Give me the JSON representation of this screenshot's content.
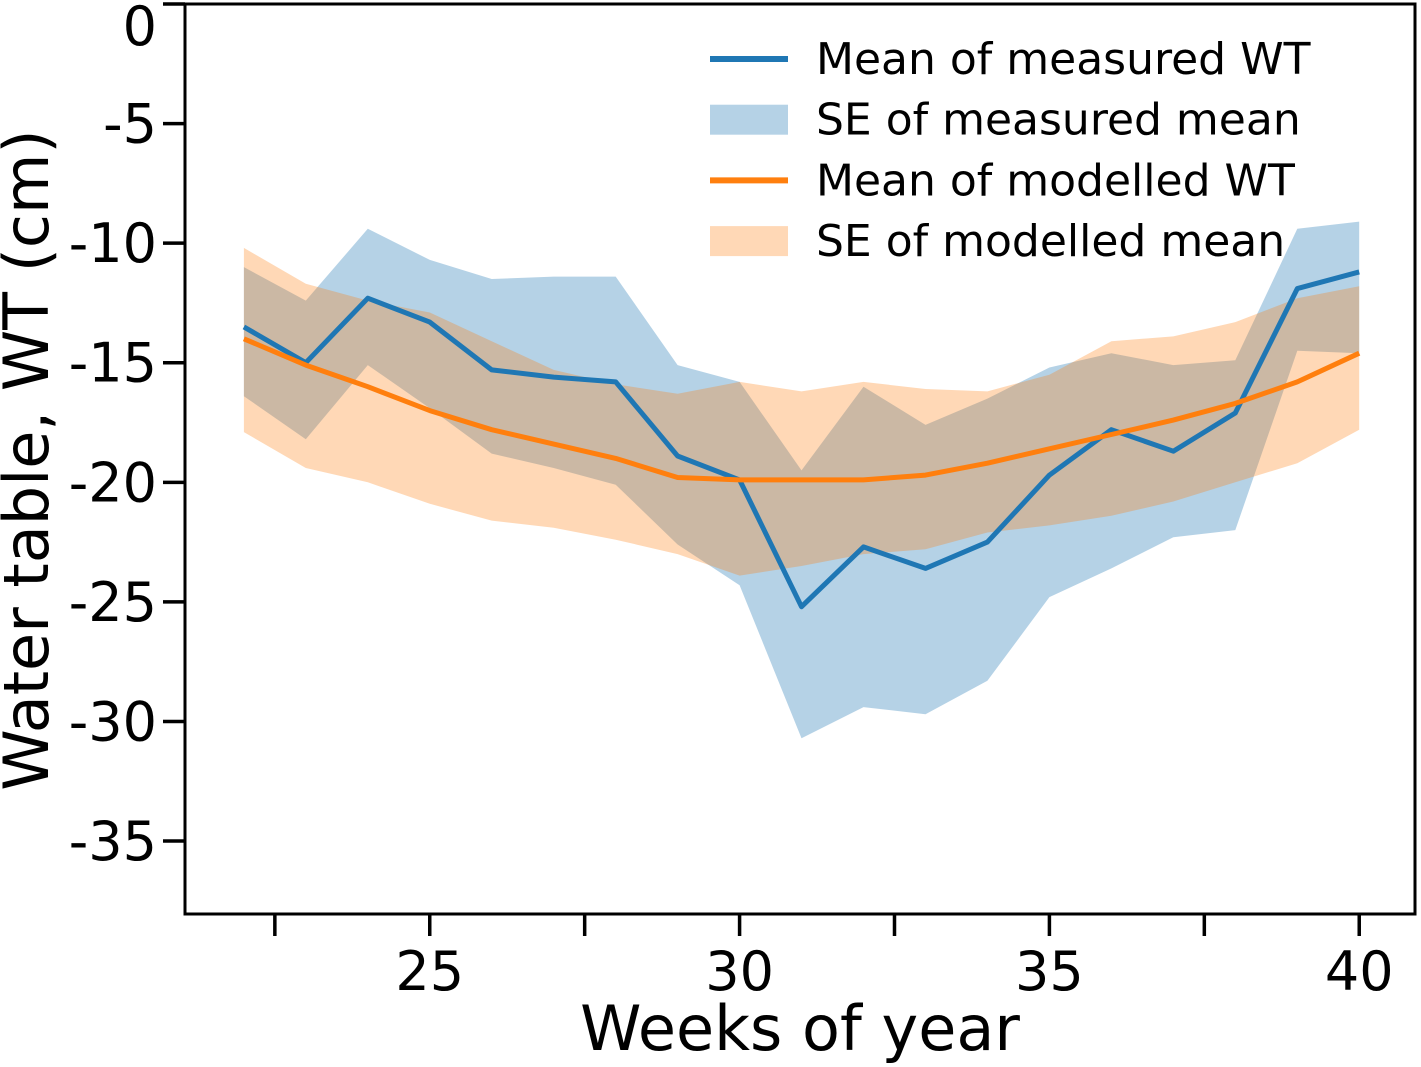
{
  "chart_data": {
    "type": "line",
    "title": "",
    "xlabel": "Weeks of year",
    "ylabel": "Water table, WT (cm)",
    "grid": false,
    "legend_position": "upper right",
    "xlim": [
      21.05,
      40.9
    ],
    "ylim": [
      0,
      -38.05
    ],
    "x": [
      22,
      23,
      24,
      25,
      26,
      27,
      28,
      29,
      30,
      31,
      32,
      33,
      34,
      35,
      36,
      37,
      38,
      39,
      40
    ],
    "series": [
      {
        "name": "Mean of measured WT",
        "kind": "line",
        "color": "#1f77b4",
        "values": [
          -13.5,
          -15.0,
          -12.3,
          -13.3,
          -15.3,
          -15.6,
          -15.8,
          -18.9,
          -19.9,
          -25.2,
          -22.7,
          -23.6,
          -22.5,
          -19.7,
          -17.8,
          -18.7,
          -17.1,
          -11.9,
          -11.2
        ]
      },
      {
        "name": "SE of measured mean",
        "kind": "band",
        "color": "rgba(31,119,180,0.33)",
        "upper": [
          -11.0,
          -12.4,
          -9.4,
          -10.7,
          -11.5,
          -11.4,
          -11.4,
          -15.1,
          -15.8,
          -19.5,
          -16.0,
          -17.6,
          -16.5,
          -15.2,
          -14.6,
          -15.1,
          -14.9,
          -9.4,
          -9.1
        ],
        "lower": [
          -16.4,
          -18.2,
          -15.1,
          -16.9,
          -18.8,
          -19.4,
          -20.1,
          -22.6,
          -24.3,
          -30.7,
          -29.4,
          -29.7,
          -28.3,
          -24.8,
          -23.6,
          -22.3,
          -22.0,
          -14.5,
          -14.6
        ]
      },
      {
        "name": "Mean of modelled WT",
        "kind": "line",
        "color": "#ff7f0e",
        "values": [
          -14.0,
          -15.1,
          -16.0,
          -17.0,
          -17.8,
          -18.4,
          -19.0,
          -19.8,
          -19.9,
          -19.9,
          -19.9,
          -19.7,
          -19.2,
          -18.6,
          -18.0,
          -17.4,
          -16.7,
          -15.8,
          -14.6
        ]
      },
      {
        "name": "SE of modelled mean",
        "kind": "band",
        "color": "rgba(255,127,14,0.30)",
        "upper": [
          -10.2,
          -11.7,
          -12.4,
          -12.9,
          -14.1,
          -15.3,
          -15.9,
          -16.3,
          -15.8,
          -16.2,
          -15.8,
          -16.1,
          -16.2,
          -15.5,
          -14.1,
          -13.9,
          -13.3,
          -12.3,
          -11.8
        ],
        "lower": [
          -17.9,
          -19.4,
          -20.0,
          -20.9,
          -21.6,
          -21.9,
          -22.4,
          -23.0,
          -23.9,
          -23.5,
          -23.0,
          -22.8,
          -22.1,
          -21.8,
          -21.4,
          -20.8,
          -20.0,
          -19.2,
          -17.8
        ]
      }
    ],
    "x_axis": {
      "ticks": [
        22.5,
        25,
        27.5,
        30,
        32.5,
        35,
        37.5,
        40
      ],
      "labeled_ticks": [
        {
          "pos": 25,
          "label": "25"
        },
        {
          "pos": 30,
          "label": "30"
        },
        {
          "pos": 35,
          "label": "35"
        },
        {
          "pos": 40,
          "label": "40"
        }
      ]
    },
    "y_axis": {
      "ticks": [
        {
          "pos": 0,
          "label": "0"
        },
        {
          "pos": -5,
          "label": "-5"
        },
        {
          "pos": -10,
          "label": "-10"
        },
        {
          "pos": -15,
          "label": "-15"
        },
        {
          "pos": -20,
          "label": "-20"
        },
        {
          "pos": -25,
          "label": "-25"
        },
        {
          "pos": -30,
          "label": "-30"
        },
        {
          "pos": -35,
          "label": "-35"
        }
      ]
    },
    "frame_color": "#000000",
    "background_color": "#ffffff"
  }
}
